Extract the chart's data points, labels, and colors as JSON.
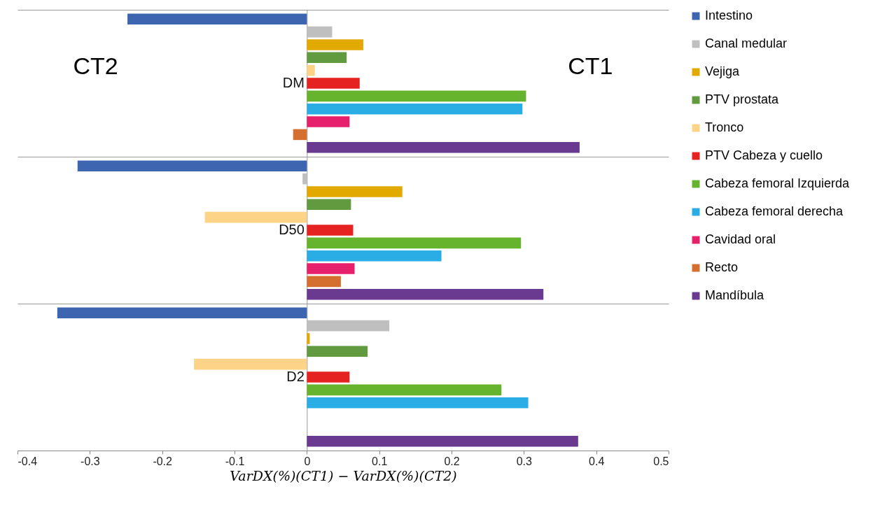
{
  "chart_data": {
    "type": "bar",
    "orientation": "horizontal",
    "xlabel": "VarDX(%)(CT1) − VarDX(%)(CT2)",
    "categories": [
      "DM",
      "D50",
      "D2"
    ],
    "series": [
      {
        "name": "Intestino",
        "color": "#3d65b0",
        "values": [
          -0.248,
          -0.317,
          -0.345
        ]
      },
      {
        "name": "Canal medular",
        "color": "#bfbfbf",
        "values": [
          0.035,
          -0.006,
          0.114
        ]
      },
      {
        "name": "Vejiga",
        "color": "#e2a900",
        "values": [
          0.078,
          0.132,
          0.004
        ]
      },
      {
        "name": "PTV prostata",
        "color": "#619a3f",
        "values": [
          0.055,
          0.061,
          0.084
        ]
      },
      {
        "name": "Tronco",
        "color": "#fdd388",
        "values": [
          0.011,
          -0.141,
          -0.156
        ]
      },
      {
        "name": "PTV Cabeza y cuello",
        "color": "#e52421",
        "values": [
          0.073,
          0.064,
          0.059
        ]
      },
      {
        "name": "Cabeza femoral Izquierda",
        "color": "#66b32e",
        "values": [
          0.303,
          0.296,
          0.269
        ]
      },
      {
        "name": "Cabeza femoral derecha",
        "color": "#29ade4",
        "values": [
          0.298,
          0.186,
          0.306
        ]
      },
      {
        "name": "Cavidad oral",
        "color": "#e6206a",
        "values": [
          0.059,
          0.066,
          null
        ]
      },
      {
        "name": "Recto",
        "color": "#d46f2f",
        "values": [
          -0.019,
          0.047,
          null
        ]
      },
      {
        "name": "Mandíbula",
        "color": "#693a8f",
        "values": [
          0.377,
          0.327,
          0.375
        ]
      }
    ],
    "xlim": [
      -0.4,
      0.5
    ],
    "xticks": [
      -0.4,
      -0.3,
      -0.2,
      -0.1,
      0,
      0.1,
      0.2,
      0.3,
      0.4,
      0.5
    ],
    "annotations": [
      "CT2",
      "CT1"
    ],
    "grid": "y",
    "legend": "right"
  }
}
